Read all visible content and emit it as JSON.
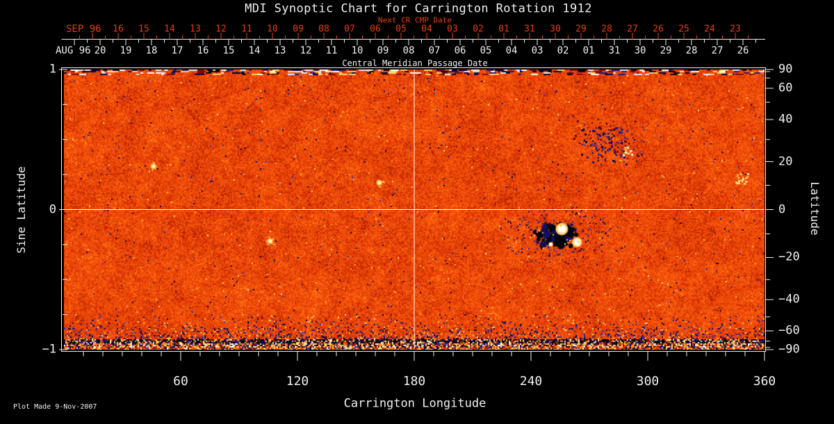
{
  "colors": {
    "background": "#000000",
    "axis": "#f2f2f2",
    "date_accent": "#e6400f",
    "crosshair": "#ffffff",
    "map_base": "#e8480a",
    "negative_flux": "#15157a",
    "positive_flux": "#fff0b8"
  },
  "chart_data": {
    "type": "heatmap",
    "title": "MDI Synoptic Chart for Carrington Rotation 1912",
    "carrington_rotation": 1912,
    "subtitle_top": "Next CR CMP Date",
    "colormap": "solar magnetogram: orange-red quiet sun, navy/black negative flux, white/yellow positive flux",
    "x_axis": {
      "label": "Carrington Longitude",
      "range": [
        0,
        360
      ],
      "major_ticks": [
        60,
        120,
        180,
        240,
        300,
        360
      ],
      "minor_tick_step": 10
    },
    "y_axis_left": {
      "label": "Sine Latitude",
      "range": [
        -1,
        1
      ],
      "major_ticks": [
        1,
        0,
        -1
      ],
      "minor_ticks": [
        0.75,
        0.5,
        0.25,
        -0.25,
        -0.5,
        -0.75
      ]
    },
    "y_axis_right": {
      "label": "Latitude",
      "major_ticks": [
        90,
        60,
        40,
        20,
        0,
        -20,
        -40,
        -60,
        -90
      ],
      "minor_ticks": [
        80,
        70,
        50,
        30,
        10,
        -10,
        -30,
        -50,
        -70,
        -80
      ]
    },
    "cmp_axis": {
      "label": "Central Meridian Passage Date",
      "current_rotation": {
        "era_label": "AUG 96",
        "tick_labels": [
          "20",
          "19",
          "18",
          "17",
          "16",
          "15",
          "14",
          "13",
          "12",
          "11",
          "10",
          "09",
          "08",
          "07",
          "06",
          "05",
          "04",
          "03",
          "02",
          "01",
          "31",
          "30",
          "29",
          "28",
          "27",
          "26"
        ]
      },
      "next_rotation": {
        "era_label": "SEP 96",
        "tick_labels": [
          "16",
          "15",
          "14",
          "13",
          "12",
          "11",
          "10",
          "09",
          "08",
          "07",
          "06",
          "05",
          "04",
          "03",
          "02",
          "01",
          "31",
          "30",
          "29",
          "28",
          "27",
          "26",
          "25",
          "24",
          "23"
        ]
      }
    },
    "crosshair": {
      "longitude": 180,
      "latitude": 0
    },
    "features": [
      {
        "type": "sunspot-group",
        "lon": 253,
        "lat": -10,
        "description": "dark bipolar active region with two bright white cores"
      },
      {
        "type": "decayed-region",
        "lon": 280,
        "lat": 29,
        "description": "scattered dark negative flux"
      },
      {
        "type": "bright-point",
        "lon": 162,
        "lat": 11
      },
      {
        "type": "bright-point",
        "lon": 106,
        "lat": -13
      },
      {
        "type": "bright-patch",
        "lon": 348,
        "lat": 13
      },
      {
        "type": "bright-point",
        "lon": 46,
        "lat": 18
      }
    ],
    "polar_edges": {
      "top": "streaked dark/blue/white noise band",
      "bottom": "dense multicolor speckle band over black"
    },
    "footer_note": "Plot Made  9-Nov-2007"
  }
}
